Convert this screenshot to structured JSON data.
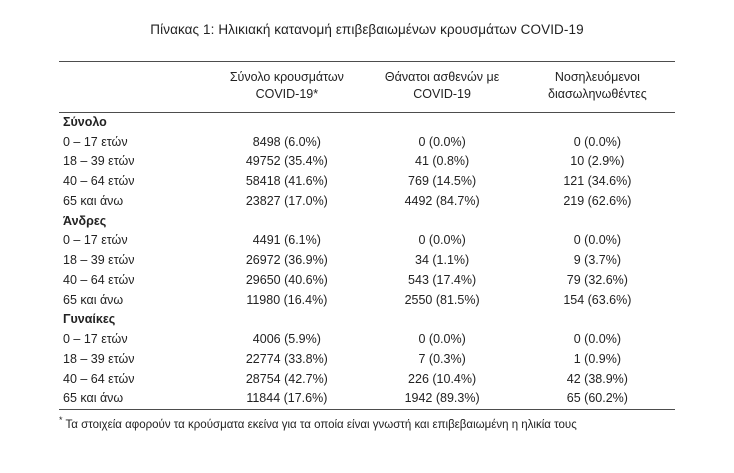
{
  "title": "Πίνακας 1: Ηλικιακή κατανομή επιβεβαιωμένων κρουσμάτων COVID-19",
  "table": {
    "columns": [
      {
        "line1": "Σύνολο κρουσμάτων",
        "line2": "COVID-19*"
      },
      {
        "line1": "Θάνατοι ασθενών με",
        "line2": "COVID-19"
      },
      {
        "line1": "Νοσηλευόμενοι",
        "line2": "διασωληνωθέντες"
      }
    ],
    "sections": [
      {
        "header": "Σύνολο",
        "rows": [
          {
            "label": "0 – 17 ετών",
            "c1": "8498 (6.0%)",
            "c2": "0 (0.0%)",
            "c3": "0 (0.0%)"
          },
          {
            "label": "18 – 39 ετών",
            "c1": "49752 (35.4%)",
            "c2": "41 (0.8%)",
            "c3": "10 (2.9%)"
          },
          {
            "label": "40 – 64 ετών",
            "c1": "58418 (41.6%)",
            "c2": "769 (14.5%)",
            "c3": "121 (34.6%)"
          },
          {
            "label": "65 και άνω",
            "c1": "23827 (17.0%)",
            "c2": "4492 (84.7%)",
            "c3": "219 (62.6%)"
          }
        ]
      },
      {
        "header": "Άνδρες",
        "rows": [
          {
            "label": "0 – 17 ετών",
            "c1": "4491 (6.1%)",
            "c2": "0 (0.0%)",
            "c3": "0 (0.0%)"
          },
          {
            "label": "18 – 39 ετών",
            "c1": "26972 (36.9%)",
            "c2": "34 (1.1%)",
            "c3": "9 (3.7%)"
          },
          {
            "label": "40 – 64 ετών",
            "c1": "29650 (40.6%)",
            "c2": "543 (17.4%)",
            "c3": "79 (32.6%)"
          },
          {
            "label": "65 και άνω",
            "c1": "11980 (16.4%)",
            "c2": "2550 (81.5%)",
            "c3": "154 (63.6%)"
          }
        ]
      },
      {
        "header": "Γυναίκες",
        "rows": [
          {
            "label": "0 – 17 ετών",
            "c1": "4006 (5.9%)",
            "c2": "0 (0.0%)",
            "c3": "0 (0.0%)"
          },
          {
            "label": "18 – 39 ετών",
            "c1": "22774 (33.8%)",
            "c2": "7 (0.3%)",
            "c3": "1 (0.9%)"
          },
          {
            "label": "40 – 64 ετών",
            "c1": "28754 (42.7%)",
            "c2": "226 (10.4%)",
            "c3": "42 (38.9%)"
          },
          {
            "label": "65 και άνω",
            "c1": "11844 (17.6%)",
            "c2": "1942 (89.3%)",
            "c3": "65 (60.2%)"
          }
        ]
      }
    ],
    "footnote_marker": "*",
    "footnote": "Τα στοιχεία αφορούν τα κρούσματα εκείνα για τα οποία είναι γνωστή και επιβεβαιωμένη η ηλικία τους"
  }
}
